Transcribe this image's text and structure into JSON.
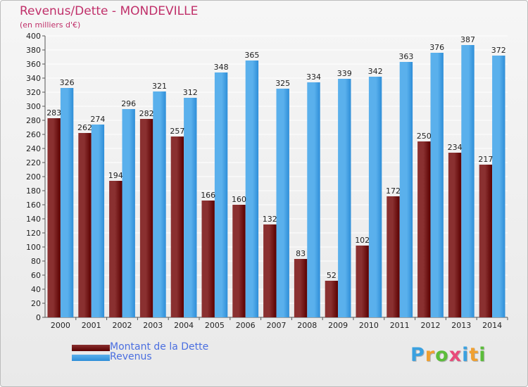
{
  "title": "Revenus/Dette - MONDEVILLE",
  "subtitle": "(en milliers d'€)",
  "logo": {
    "text": "Proxiti",
    "letters": [
      {
        "ch": "P",
        "color": "#3aa1e0"
      },
      {
        "ch": "r",
        "color": "#f0a030"
      },
      {
        "ch": "o",
        "color": "#5bbd3a"
      },
      {
        "ch": "x",
        "color": "#e84a7a"
      },
      {
        "ch": "i",
        "color": "#3aa1e0"
      },
      {
        "ch": "t",
        "color": "#f0a030"
      },
      {
        "ch": "i",
        "color": "#5bbd3a"
      }
    ]
  },
  "colors": {
    "dette_dark": "#5a0000",
    "dette_light": "#8a3030",
    "revenus_dark": "#2e8ed8",
    "revenus_light": "#5ab0ec",
    "grid": "#ffffff",
    "axis_text": "#222222"
  },
  "chart_data": {
    "type": "bar",
    "categories": [
      "2000",
      "2001",
      "2002",
      "2003",
      "2004",
      "2005",
      "2006",
      "2007",
      "2008",
      "2009",
      "2010",
      "2011",
      "2012",
      "2013",
      "2014"
    ],
    "series": [
      {
        "name": "Montant de la Dette",
        "values": [
          283,
          262,
          194,
          282,
          257,
          166,
          160,
          132,
          83,
          52,
          102,
          172,
          250,
          234,
          217
        ]
      },
      {
        "name": "Revenus",
        "values": [
          326,
          274,
          296,
          321,
          312,
          348,
          365,
          325,
          334,
          339,
          342,
          363,
          376,
          387,
          372
        ]
      }
    ],
    "ylim": [
      0,
      400
    ],
    "yticks": [
      0,
      20,
      40,
      60,
      80,
      100,
      120,
      140,
      160,
      180,
      200,
      220,
      240,
      260,
      280,
      300,
      320,
      340,
      360,
      380,
      400
    ],
    "grid": true,
    "legend_position": "bottom-left"
  }
}
